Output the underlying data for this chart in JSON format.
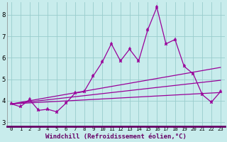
{
  "bg_color": "#c8ecec",
  "line_color": "#990099",
  "grid_color": "#99cccc",
  "xlabel": "Windchill (Refroidissement éolien,°C)",
  "xlabel_fontsize": 6.5,
  "xtick_fontsize": 5.2,
  "ytick_fontsize": 6.5,
  "xlim": [
    -0.5,
    23.5
  ],
  "ylim": [
    2.8,
    8.6
  ],
  "yticks": [
    3,
    4,
    5,
    6,
    7,
    8
  ],
  "xtick_labels": [
    "0",
    "1",
    "2",
    "3",
    "4",
    "5",
    "6",
    "7",
    "8",
    "9",
    "10",
    "11",
    "12",
    "13",
    "14",
    "15",
    "16",
    "17",
    "18",
    "19",
    "20",
    "21",
    "22",
    "23"
  ],
  "series1_x": [
    0,
    1,
    2,
    3,
    4,
    5,
    6,
    7,
    8,
    9,
    10,
    11,
    12,
    13,
    14,
    15,
    16,
    17,
    18,
    19,
    20,
    21,
    22,
    23
  ],
  "series1_y": [
    3.85,
    3.72,
    4.05,
    3.55,
    3.6,
    3.48,
    3.88,
    4.35,
    4.42,
    5.15,
    5.8,
    6.65,
    5.85,
    6.4,
    5.85,
    7.3,
    8.35,
    6.65,
    6.85,
    5.6,
    5.25,
    4.28,
    3.93,
    4.42
  ],
  "series2_x": [
    0,
    23
  ],
  "series2_y": [
    3.85,
    5.55
  ],
  "series3_x": [
    0,
    23
  ],
  "series3_y": [
    3.85,
    4.95
  ],
  "series4_x": [
    0,
    23
  ],
  "series4_y": [
    3.85,
    4.38
  ],
  "line_width": 0.9,
  "marker_size": 2.5
}
